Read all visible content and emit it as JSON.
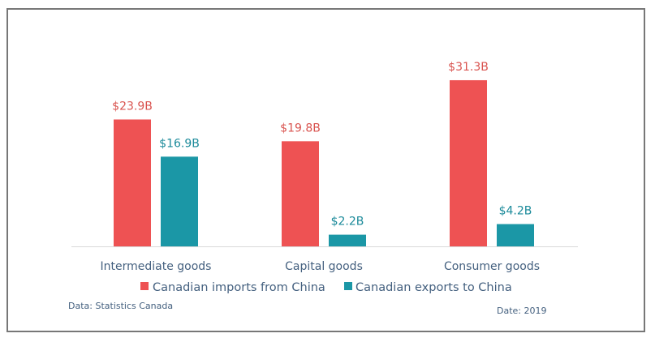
{
  "chart_data": {
    "type": "bar",
    "title": "",
    "xlabel": "",
    "ylabel": "",
    "categories": [
      "Intermediate goods",
      "Capital goods",
      "Consumer goods"
    ],
    "series": [
      {
        "name": "Canadian imports from China",
        "color": "#ee5253",
        "label_color": "#d9534f",
        "values": [
          23.9,
          19.8,
          31.3
        ],
        "labels": [
          "$23.9B",
          "$19.8B",
          "$31.3B"
        ]
      },
      {
        "name": "Canadian exports to China",
        "color": "#1b97a6",
        "label_color": "#1b8a9a",
        "values": [
          16.9,
          2.2,
          4.2
        ],
        "labels": [
          "$16.9B",
          "$2.2B",
          "$4.2B"
        ]
      }
    ],
    "ylim": [
      0,
      31.3
    ],
    "grid": false,
    "y_axis_visible": false,
    "legend_position": "bottom",
    "units": "billion CAD"
  },
  "footer": {
    "source": "Data: Statistics Canada",
    "date": "Date: 2019"
  },
  "colors": {
    "axis": "#d9d9d9",
    "text": "#44607f",
    "frame": "#777777"
  }
}
